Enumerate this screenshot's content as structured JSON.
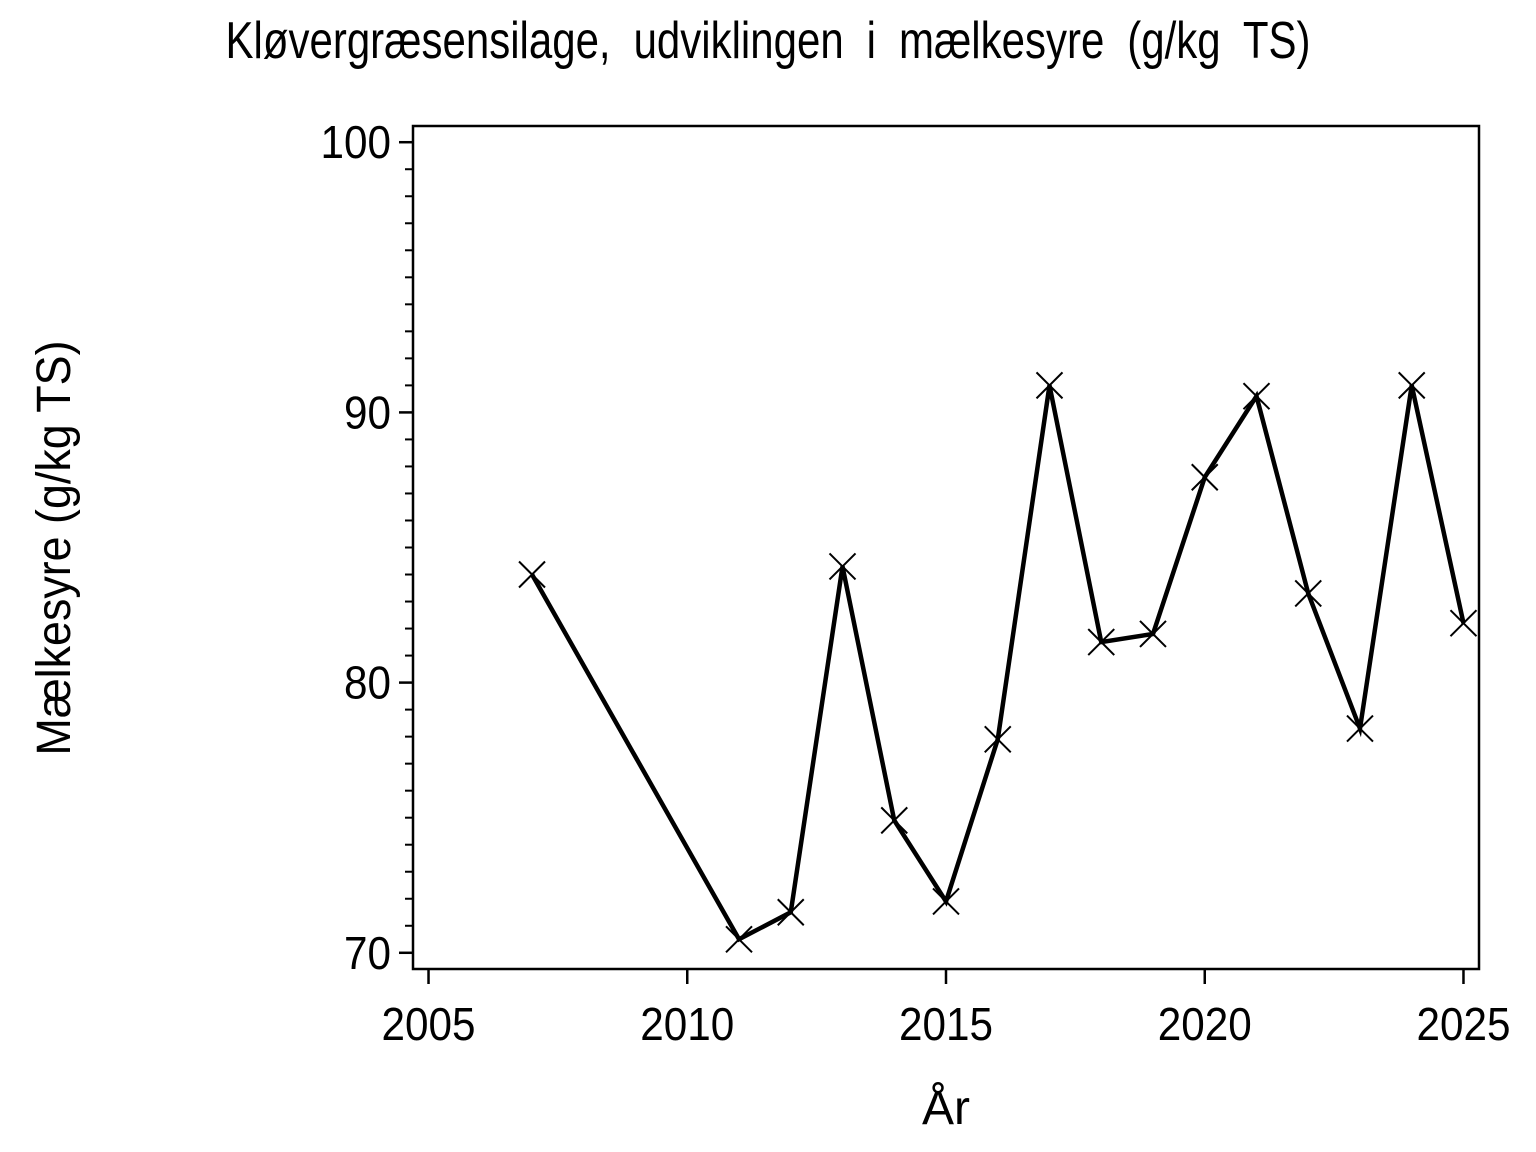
{
  "title": "Kløvergræsensilage, udviklingen i mælkesyre (g/kg TS)",
  "chart_data": {
    "type": "line",
    "title": "Kløvergræsensilage, udviklingen i mælkesyre (g/kg TS)",
    "xlabel": "År",
    "ylabel": "Mælkesyre (g/kg TS)",
    "x": [
      2007,
      2011,
      2012,
      2013,
      2014,
      2015,
      2016,
      2017,
      2018,
      2019,
      2020,
      2021,
      2022,
      2023,
      2024,
      2025
    ],
    "y": [
      84,
      70.5,
      71.5,
      84.3,
      74.9,
      71.9,
      77.9,
      91,
      81.5,
      81.8,
      87.6,
      90.6,
      83.3,
      78.3,
      91,
      82.2
    ],
    "xticks": [
      2005,
      2010,
      2015,
      2020,
      2025
    ],
    "yticks": [
      70,
      80,
      90,
      100
    ],
    "y_minor_step": 1,
    "xlim": [
      2004.7,
      2025.3
    ],
    "ylim": [
      69.4,
      100.6
    ],
    "marker": "x",
    "line_color": "#000000",
    "axis_color": "#000000",
    "background_color": "#ffffff",
    "grid": false,
    "legend": null
  }
}
